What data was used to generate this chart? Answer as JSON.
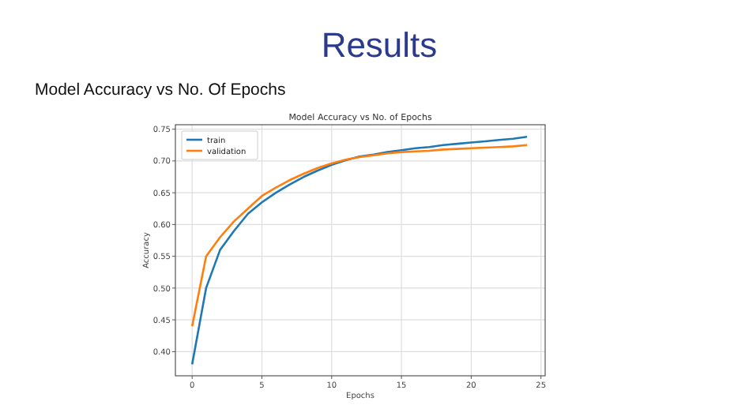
{
  "chart_data": {
    "type": "line",
    "title": "Results",
    "subtitle": "Model Accuracy vs No. Of Epochs",
    "annotations": [
      "Model Accuracy vs No. of Epochs"
    ],
    "xlabel": "Epochs",
    "ylabel": "Accuracy",
    "x": [
      0,
      1,
      2,
      3,
      4,
      5,
      6,
      7,
      8,
      9,
      10,
      11,
      12,
      13,
      14,
      15,
      16,
      17,
      18,
      19,
      20,
      21,
      22,
      23,
      24
    ],
    "series": [
      {
        "name": "train",
        "color": "#1f77b4",
        "values": [
          0.38,
          0.5,
          0.56,
          0.59,
          0.617,
          0.635,
          0.65,
          0.663,
          0.675,
          0.685,
          0.694,
          0.701,
          0.707,
          0.71,
          0.714,
          0.717,
          0.72,
          0.722,
          0.725,
          0.727,
          0.729,
          0.731,
          0.733,
          0.735,
          0.738
        ]
      },
      {
        "name": "validation",
        "color": "#ff7f0e",
        "values": [
          0.44,
          0.55,
          0.58,
          0.605,
          0.625,
          0.645,
          0.658,
          0.67,
          0.68,
          0.689,
          0.696,
          0.702,
          0.706,
          0.709,
          0.712,
          0.714,
          0.715,
          0.716,
          0.718,
          0.719,
          0.72,
          0.721,
          0.722,
          0.723,
          0.725
        ]
      }
    ],
    "xlim": [
      -1.2,
      25.3
    ],
    "xticks": [
      0,
      5,
      10,
      15,
      20,
      25
    ],
    "ylim": [
      0.362,
      0.757
    ],
    "yticks": [
      {
        "value": 0.4,
        "label": "0.40"
      },
      {
        "value": 0.45,
        "label": "0.45"
      },
      {
        "value": 0.5,
        "label": "0.50"
      },
      {
        "value": 0.55,
        "label": "0.55"
      },
      {
        "value": 0.6,
        "label": "0.60"
      },
      {
        "value": 0.65,
        "label": "0.65"
      },
      {
        "value": 0.7,
        "label": "0.70"
      },
      {
        "value": 0.75,
        "label": "0.75"
      }
    ],
    "grid": true,
    "legend": "top left",
    "line_style": "solid",
    "marker": "none"
  }
}
